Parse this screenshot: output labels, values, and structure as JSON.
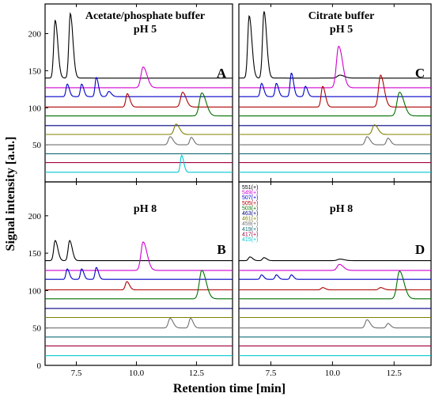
{
  "x_axis_label": "Retention time  [min]",
  "y_axis_label": "Signal intensity [a.u.]",
  "colors": {
    "551": "#000000",
    "549": "#d000d0",
    "507": "#0000c8",
    "505": "#b00000",
    "503": "#007000",
    "463": "#000080",
    "461": "#808000",
    "459": "#707070",
    "419": "#106870",
    "417": "#a00040",
    "415": "#00c8d0"
  },
  "legend": {
    "entries": [
      {
        "label": "551(+)",
        "color": "#000000"
      },
      {
        "label": "549(+)",
        "color": "#d000d0"
      },
      {
        "label": "507(+)",
        "color": "#0000c8"
      },
      {
        "label": "505(+)",
        "color": "#b00000"
      },
      {
        "label": "503(+)",
        "color": "#007000"
      },
      {
        "label": "463(+)",
        "color": "#000080"
      },
      {
        "label": "461(+)",
        "color": "#808000"
      },
      {
        "label": "459(+)",
        "color": "#707070"
      },
      {
        "label": "419(+)",
        "color": "#106870"
      },
      {
        "label": "417(+)",
        "color": "#a00040"
      },
      {
        "label": "415(+)",
        "color": "#00c8d0"
      }
    ]
  },
  "chart_data": [
    {
      "panel": "A",
      "type": "line",
      "title_line1": "Acetate/phosphate buffer",
      "title_line2": "pH 5",
      "xlim": [
        6.2,
        14.0
      ],
      "ylim": [
        0,
        240
      ],
      "x_ticks": [
        7.5,
        10.0,
        12.5
      ],
      "y_ticks": [
        50,
        100,
        150,
        200
      ],
      "series": [
        {
          "key": "551",
          "baseline": 140,
          "peaks": [
            [
              6.62,
              78,
              0.06
            ],
            [
              7.25,
              87,
              0.06
            ]
          ]
        },
        {
          "key": "549",
          "baseline": 127,
          "peaks": [
            [
              10.28,
              28,
              0.09
            ]
          ]
        },
        {
          "key": "507",
          "baseline": 115,
          "peaks": [
            [
              7.12,
              17,
              0.05
            ],
            [
              7.72,
              17,
              0.05
            ],
            [
              8.33,
              26,
              0.05
            ],
            [
              8.85,
              7,
              0.06
            ]
          ]
        },
        {
          "key": "505",
          "baseline": 101,
          "peaks": [
            [
              9.62,
              18,
              0.06
            ],
            [
              11.92,
              20,
              0.08
            ]
          ]
        },
        {
          "key": "503",
          "baseline": 89,
          "peaks": [
            [
              12.72,
              31,
              0.1
            ]
          ]
        },
        {
          "key": "463",
          "baseline": 76,
          "peaks": []
        },
        {
          "key": "461",
          "baseline": 64,
          "peaks": [
            [
              11.65,
              14,
              0.08
            ]
          ]
        },
        {
          "key": "459",
          "baseline": 50,
          "peaks": [
            [
              11.4,
              11,
              0.07
            ],
            [
              12.28,
              10,
              0.06
            ]
          ]
        },
        {
          "key": "419",
          "baseline": 38,
          "peaks": []
        },
        {
          "key": "417",
          "baseline": 26,
          "peaks": []
        },
        {
          "key": "415",
          "baseline": 13,
          "peaks": [
            [
              11.88,
              23,
              0.05
            ]
          ]
        }
      ]
    },
    {
      "panel": "C",
      "type": "line",
      "title_line1": "Citrate buffer",
      "title_line2": "pH 5",
      "xlim": [
        6.2,
        14.0
      ],
      "ylim": [
        0,
        240
      ],
      "x_ticks": [
        7.5,
        10.0,
        12.5
      ],
      "y_ticks": [],
      "series": [
        {
          "key": "551",
          "baseline": 140,
          "peaks": [
            [
              6.62,
              84,
              0.06
            ],
            [
              7.22,
              90,
              0.06
            ],
            [
              10.3,
              4,
              0.1
            ]
          ]
        },
        {
          "key": "549",
          "baseline": 127,
          "peaks": [
            [
              10.25,
              56,
              0.09
            ]
          ]
        },
        {
          "key": "507",
          "baseline": 115,
          "peaks": [
            [
              7.12,
              18,
              0.05
            ],
            [
              7.72,
              18,
              0.05
            ],
            [
              8.33,
              32,
              0.05
            ],
            [
              8.9,
              14,
              0.05
            ]
          ]
        },
        {
          "key": "505",
          "baseline": 101,
          "peaks": [
            [
              9.6,
              28,
              0.06
            ],
            [
              11.95,
              43,
              0.08
            ]
          ]
        },
        {
          "key": "503",
          "baseline": 89,
          "peaks": [
            [
              12.72,
              32,
              0.1
            ]
          ]
        },
        {
          "key": "463",
          "baseline": 76,
          "peaks": []
        },
        {
          "key": "461",
          "baseline": 64,
          "peaks": [
            [
              11.7,
              13,
              0.08
            ]
          ]
        },
        {
          "key": "459",
          "baseline": 50,
          "peaks": [
            [
              11.4,
              11,
              0.07
            ],
            [
              12.25,
              9,
              0.06
            ]
          ]
        },
        {
          "key": "419",
          "baseline": 38,
          "peaks": []
        },
        {
          "key": "417",
          "baseline": 26,
          "peaks": []
        },
        {
          "key": "415",
          "baseline": 13,
          "peaks": []
        }
      ]
    },
    {
      "panel": "B",
      "type": "line",
      "title_line1": "",
      "title_line2": "pH 8",
      "xlim": [
        6.2,
        14.0
      ],
      "ylim": [
        0,
        240
      ],
      "x_ticks": [
        7.5,
        10.0,
        12.5
      ],
      "y_ticks": [
        0,
        50,
        100,
        150,
        200
      ],
      "series": [
        {
          "key": "551",
          "baseline": 140,
          "peaks": [
            [
              6.62,
              27,
              0.06
            ],
            [
              7.22,
              27,
              0.06
            ]
          ]
        },
        {
          "key": "549",
          "baseline": 127,
          "peaks": [
            [
              10.28,
              38,
              0.09
            ]
          ]
        },
        {
          "key": "507",
          "baseline": 115,
          "peaks": [
            [
              7.12,
              14,
              0.05
            ],
            [
              7.72,
              14,
              0.05
            ],
            [
              8.33,
              16,
              0.05
            ]
          ]
        },
        {
          "key": "505",
          "baseline": 101,
          "peaks": [
            [
              9.6,
              11,
              0.06
            ]
          ]
        },
        {
          "key": "503",
          "baseline": 89,
          "peaks": [
            [
              12.72,
              38,
              0.1
            ]
          ]
        },
        {
          "key": "463",
          "baseline": 76,
          "peaks": []
        },
        {
          "key": "461",
          "baseline": 64,
          "peaks": []
        },
        {
          "key": "459",
          "baseline": 50,
          "peaks": [
            [
              11.4,
              13,
              0.07
            ],
            [
              12.25,
              13,
              0.06
            ]
          ]
        },
        {
          "key": "419",
          "baseline": 38,
          "peaks": []
        },
        {
          "key": "417",
          "baseline": 26,
          "peaks": []
        },
        {
          "key": "415",
          "baseline": 13,
          "peaks": []
        }
      ]
    },
    {
      "panel": "D",
      "type": "line",
      "title_line1": "",
      "title_line2": "pH 8",
      "xlim": [
        6.2,
        14.0
      ],
      "ylim": [
        0,
        240
      ],
      "x_ticks": [
        7.5,
        10.0,
        12.5
      ],
      "y_ticks": [],
      "series": [
        {
          "key": "551",
          "baseline": 140,
          "peaks": [
            [
              6.65,
              5,
              0.06
            ],
            [
              7.22,
              4,
              0.06
            ],
            [
              10.3,
              2,
              0.1
            ]
          ]
        },
        {
          "key": "549",
          "baseline": 127,
          "peaks": [
            [
              10.28,
              8,
              0.09
            ]
          ]
        },
        {
          "key": "507",
          "baseline": 115,
          "peaks": [
            [
              7.12,
              6,
              0.05
            ],
            [
              7.72,
              6,
              0.05
            ],
            [
              8.33,
              6,
              0.05
            ]
          ]
        },
        {
          "key": "505",
          "baseline": 101,
          "peaks": [
            [
              9.6,
              3,
              0.06
            ],
            [
              11.95,
              3,
              0.07
            ]
          ]
        },
        {
          "key": "503",
          "baseline": 89,
          "peaks": [
            [
              12.72,
              37,
              0.1
            ]
          ]
        },
        {
          "key": "463",
          "baseline": 76,
          "peaks": []
        },
        {
          "key": "461",
          "baseline": 64,
          "peaks": []
        },
        {
          "key": "459",
          "baseline": 50,
          "peaks": [
            [
              11.4,
              11,
              0.07
            ],
            [
              12.25,
              6,
              0.06
            ]
          ]
        },
        {
          "key": "419",
          "baseline": 38,
          "peaks": []
        },
        {
          "key": "417",
          "baseline": 26,
          "peaks": []
        },
        {
          "key": "415",
          "baseline": 13,
          "peaks": []
        }
      ]
    }
  ]
}
